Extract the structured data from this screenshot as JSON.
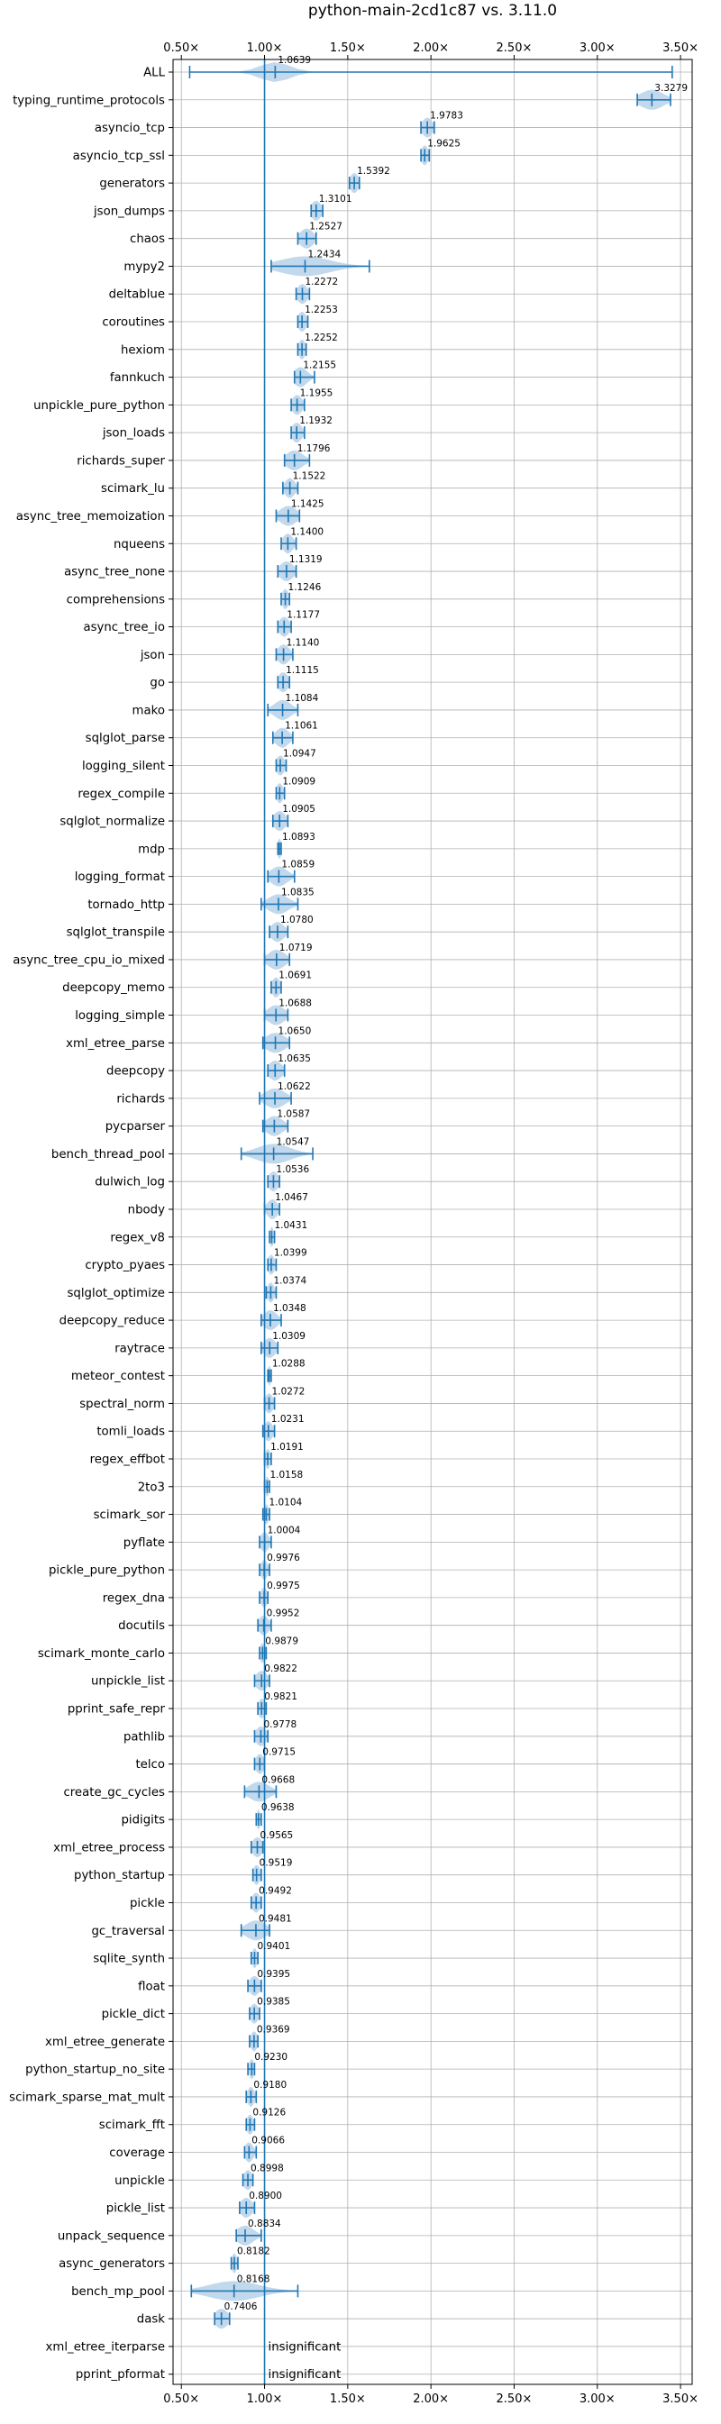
{
  "chart_data": {
    "type": "violin",
    "title": "python-main-2cd1c87 vs. 3.11.0",
    "xlabel": "",
    "ylabel": "",
    "xlim": [
      0.45,
      3.57
    ],
    "x_ticks": [
      0.5,
      1.0,
      1.5,
      2.0,
      2.5,
      3.0,
      3.5
    ],
    "x_tick_labels": [
      "0.50×",
      "1.00×",
      "1.50×",
      "2.00×",
      "2.50×",
      "3.00×",
      "3.50×"
    ],
    "reference_line": 1.0,
    "grid": true,
    "accent_color": "#1f77b4",
    "violin_color": "#aecbe6",
    "benchmarks": [
      {
        "name": "ALL",
        "label": "1.0639",
        "mean": 1.0639,
        "min": 0.55,
        "max": 3.45,
        "spread": 0.09
      },
      {
        "name": "typing_runtime_protocols",
        "label": "3.3279",
        "mean": 3.3279,
        "min": 3.24,
        "max": 3.44,
        "spread": 0.07
      },
      {
        "name": "asyncio_tcp",
        "label": "1.9783",
        "mean": 1.9783,
        "min": 1.94,
        "max": 2.02,
        "spread": 0.03
      },
      {
        "name": "asyncio_tcp_ssl",
        "label": "1.9625",
        "mean": 1.9625,
        "min": 1.94,
        "max": 1.99,
        "spread": 0.02
      },
      {
        "name": "generators",
        "label": "1.5392",
        "mean": 1.5392,
        "min": 1.51,
        "max": 1.57,
        "spread": 0.025
      },
      {
        "name": "json_dumps",
        "label": "1.3101",
        "mean": 1.3101,
        "min": 1.28,
        "max": 1.35,
        "spread": 0.03
      },
      {
        "name": "chaos",
        "label": "1.2527",
        "mean": 1.2527,
        "min": 1.2,
        "max": 1.31,
        "spread": 0.04
      },
      {
        "name": "mypy2",
        "label": "1.2434",
        "mean": 1.2434,
        "min": 1.04,
        "max": 1.63,
        "spread": 0.15
      },
      {
        "name": "deltablue",
        "label": "1.2272",
        "mean": 1.2272,
        "min": 1.19,
        "max": 1.27,
        "spread": 0.03
      },
      {
        "name": "coroutines",
        "label": "1.2253",
        "mean": 1.2253,
        "min": 1.2,
        "max": 1.26,
        "spread": 0.025
      },
      {
        "name": "hexiom",
        "label": "1.2252",
        "mean": 1.2252,
        "min": 1.2,
        "max": 1.25,
        "spread": 0.02
      },
      {
        "name": "fannkuch",
        "label": "1.2155",
        "mean": 1.2155,
        "min": 1.18,
        "max": 1.3,
        "spread": 0.04
      },
      {
        "name": "unpickle_pure_python",
        "label": "1.1955",
        "mean": 1.1955,
        "min": 1.16,
        "max": 1.24,
        "spread": 0.03
      },
      {
        "name": "json_loads",
        "label": "1.1932",
        "mean": 1.1932,
        "min": 1.16,
        "max": 1.24,
        "spread": 0.03
      },
      {
        "name": "richards_super",
        "label": "1.1796",
        "mean": 1.1796,
        "min": 1.12,
        "max": 1.27,
        "spread": 0.05
      },
      {
        "name": "scimark_lu",
        "label": "1.1522",
        "mean": 1.1522,
        "min": 1.11,
        "max": 1.2,
        "spread": 0.03
      },
      {
        "name": "async_tree_memoization",
        "label": "1.1425",
        "mean": 1.1425,
        "min": 1.07,
        "max": 1.21,
        "spread": 0.05
      },
      {
        "name": "nqueens",
        "label": "1.1400",
        "mean": 1.14,
        "min": 1.1,
        "max": 1.19,
        "spread": 0.03
      },
      {
        "name": "async_tree_none",
        "label": "1.1319",
        "mean": 1.1319,
        "min": 1.08,
        "max": 1.19,
        "spread": 0.04
      },
      {
        "name": "comprehensions",
        "label": "1.1246",
        "mean": 1.1246,
        "min": 1.1,
        "max": 1.15,
        "spread": 0.02
      },
      {
        "name": "async_tree_io",
        "label": "1.1177",
        "mean": 1.1177,
        "min": 1.08,
        "max": 1.16,
        "spread": 0.03
      },
      {
        "name": "json",
        "label": "1.1140",
        "mean": 1.114,
        "min": 1.07,
        "max": 1.17,
        "spread": 0.035
      },
      {
        "name": "go",
        "label": "1.1115",
        "mean": 1.1115,
        "min": 1.08,
        "max": 1.15,
        "spread": 0.03
      },
      {
        "name": "mako",
        "label": "1.1084",
        "mean": 1.1084,
        "min": 1.02,
        "max": 1.2,
        "spread": 0.05
      },
      {
        "name": "sqlglot_parse",
        "label": "1.1061",
        "mean": 1.1061,
        "min": 1.05,
        "max": 1.17,
        "spread": 0.04
      },
      {
        "name": "logging_silent",
        "label": "1.0947",
        "mean": 1.0947,
        "min": 1.07,
        "max": 1.13,
        "spread": 0.025
      },
      {
        "name": "regex_compile",
        "label": "1.0909",
        "mean": 1.0909,
        "min": 1.07,
        "max": 1.12,
        "spread": 0.02
      },
      {
        "name": "sqlglot_normalize",
        "label": "1.0905",
        "mean": 1.0905,
        "min": 1.05,
        "max": 1.14,
        "spread": 0.035
      },
      {
        "name": "mdp",
        "label": "1.0893",
        "mean": 1.0893,
        "min": 1.08,
        "max": 1.1,
        "spread": 0.012
      },
      {
        "name": "logging_format",
        "label": "1.0859",
        "mean": 1.0859,
        "min": 1.02,
        "max": 1.18,
        "spread": 0.05
      },
      {
        "name": "tornado_http",
        "label": "1.0835",
        "mean": 1.0835,
        "min": 0.98,
        "max": 1.2,
        "spread": 0.06
      },
      {
        "name": "sqlglot_transpile",
        "label": "1.0780",
        "mean": 1.078,
        "min": 1.03,
        "max": 1.14,
        "spread": 0.04
      },
      {
        "name": "async_tree_cpu_io_mixed",
        "label": "1.0719",
        "mean": 1.0719,
        "min": 1.0,
        "max": 1.15,
        "spread": 0.05
      },
      {
        "name": "deepcopy_memo",
        "label": "1.0691",
        "mean": 1.0691,
        "min": 1.04,
        "max": 1.1,
        "spread": 0.025
      },
      {
        "name": "logging_simple",
        "label": "1.0688",
        "mean": 1.0688,
        "min": 1.0,
        "max": 1.14,
        "spread": 0.05
      },
      {
        "name": "xml_etree_parse",
        "label": "1.0650",
        "mean": 1.065,
        "min": 0.99,
        "max": 1.15,
        "spread": 0.06
      },
      {
        "name": "deepcopy",
        "label": "1.0635",
        "mean": 1.0635,
        "min": 1.02,
        "max": 1.12,
        "spread": 0.04
      },
      {
        "name": "richards",
        "label": "1.0622",
        "mean": 1.0622,
        "min": 0.97,
        "max": 1.16,
        "spread": 0.06
      },
      {
        "name": "pycparser",
        "label": "1.0587",
        "mean": 1.0587,
        "min": 0.99,
        "max": 1.14,
        "spread": 0.05
      },
      {
        "name": "bench_thread_pool",
        "label": "1.0547",
        "mean": 1.0547,
        "min": 0.86,
        "max": 1.29,
        "spread": 0.1
      },
      {
        "name": "dulwich_log",
        "label": "1.0536",
        "mean": 1.0536,
        "min": 1.02,
        "max": 1.09,
        "spread": 0.03
      },
      {
        "name": "nbody",
        "label": "1.0467",
        "mean": 1.0467,
        "min": 1.0,
        "max": 1.09,
        "spread": 0.03
      },
      {
        "name": "regex_v8",
        "label": "1.0431",
        "mean": 1.0431,
        "min": 1.03,
        "max": 1.06,
        "spread": 0.012
      },
      {
        "name": "crypto_pyaes",
        "label": "1.0399",
        "mean": 1.0399,
        "min": 1.02,
        "max": 1.07,
        "spread": 0.02
      },
      {
        "name": "sqlglot_optimize",
        "label": "1.0374",
        "mean": 1.0374,
        "min": 1.01,
        "max": 1.07,
        "spread": 0.02
      },
      {
        "name": "deepcopy_reduce",
        "label": "1.0348",
        "mean": 1.0348,
        "min": 0.98,
        "max": 1.1,
        "spread": 0.04
      },
      {
        "name": "raytrace",
        "label": "1.0309",
        "mean": 1.0309,
        "min": 0.98,
        "max": 1.08,
        "spread": 0.035
      },
      {
        "name": "meteor_contest",
        "label": "1.0288",
        "mean": 1.0288,
        "min": 1.02,
        "max": 1.04,
        "spread": 0.01
      },
      {
        "name": "spectral_norm",
        "label": "1.0272",
        "mean": 1.0272,
        "min": 1.0,
        "max": 1.06,
        "spread": 0.025
      },
      {
        "name": "tomli_loads",
        "label": "1.0231",
        "mean": 1.0231,
        "min": 0.99,
        "max": 1.06,
        "spread": 0.025
      },
      {
        "name": "regex_effbot",
        "label": "1.0191",
        "mean": 1.0191,
        "min": 1.0,
        "max": 1.04,
        "spread": 0.015
      },
      {
        "name": "2to3",
        "label": "1.0158",
        "mean": 1.0158,
        "min": 1.0,
        "max": 1.03,
        "spread": 0.012
      },
      {
        "name": "scimark_sor",
        "label": "1.0104",
        "mean": 1.0104,
        "min": 0.99,
        "max": 1.03,
        "spread": 0.015
      },
      {
        "name": "pyflate",
        "label": "1.0004",
        "mean": 1.0004,
        "min": 0.97,
        "max": 1.04,
        "spread": 0.025
      },
      {
        "name": "pickle_pure_python",
        "label": "0.9976",
        "mean": 0.9976,
        "min": 0.97,
        "max": 1.03,
        "spread": 0.02
      },
      {
        "name": "regex_dna",
        "label": "0.9975",
        "mean": 0.9975,
        "min": 0.97,
        "max": 1.02,
        "spread": 0.02
      },
      {
        "name": "docutils",
        "label": "0.9952",
        "mean": 0.9952,
        "min": 0.96,
        "max": 1.04,
        "spread": 0.03
      },
      {
        "name": "scimark_monte_carlo",
        "label": "0.9879",
        "mean": 0.9879,
        "min": 0.97,
        "max": 1.01,
        "spread": 0.015
      },
      {
        "name": "unpickle_list",
        "label": "0.9822",
        "mean": 0.9822,
        "min": 0.94,
        "max": 1.03,
        "spread": 0.035
      },
      {
        "name": "pprint_safe_repr",
        "label": "0.9821",
        "mean": 0.9821,
        "min": 0.96,
        "max": 1.01,
        "spread": 0.02
      },
      {
        "name": "pathlib",
        "label": "0.9778",
        "mean": 0.9778,
        "min": 0.94,
        "max": 1.02,
        "spread": 0.03
      },
      {
        "name": "telco",
        "label": "0.9715",
        "mean": 0.9715,
        "min": 0.94,
        "max": 1.0,
        "spread": 0.025
      },
      {
        "name": "create_gc_cycles",
        "label": "0.9668",
        "mean": 0.9668,
        "min": 0.88,
        "max": 1.07,
        "spread": 0.06
      },
      {
        "name": "pidigits",
        "label": "0.9638",
        "mean": 0.9638,
        "min": 0.95,
        "max": 0.98,
        "spread": 0.01
      },
      {
        "name": "xml_etree_process",
        "label": "0.9565",
        "mean": 0.9565,
        "min": 0.92,
        "max": 0.99,
        "spread": 0.03
      },
      {
        "name": "python_startup",
        "label": "0.9519",
        "mean": 0.9519,
        "min": 0.93,
        "max": 0.98,
        "spread": 0.02
      },
      {
        "name": "pickle",
        "label": "0.9492",
        "mean": 0.9492,
        "min": 0.92,
        "max": 0.98,
        "spread": 0.025
      },
      {
        "name": "gc_traversal",
        "label": "0.9481",
        "mean": 0.9481,
        "min": 0.86,
        "max": 1.03,
        "spread": 0.06
      },
      {
        "name": "sqlite_synth",
        "label": "0.9401",
        "mean": 0.9401,
        "min": 0.92,
        "max": 0.96,
        "spread": 0.015
      },
      {
        "name": "float",
        "label": "0.9395",
        "mean": 0.9395,
        "min": 0.9,
        "max": 0.98,
        "spread": 0.03
      },
      {
        "name": "pickle_dict",
        "label": "0.9385",
        "mean": 0.9385,
        "min": 0.91,
        "max": 0.97,
        "spread": 0.025
      },
      {
        "name": "xml_etree_generate",
        "label": "0.9369",
        "mean": 0.9369,
        "min": 0.91,
        "max": 0.96,
        "spread": 0.02
      },
      {
        "name": "python_startup_no_site",
        "label": "0.9230",
        "mean": 0.923,
        "min": 0.9,
        "max": 0.94,
        "spread": 0.015
      },
      {
        "name": "scimark_sparse_mat_mult",
        "label": "0.9180",
        "mean": 0.918,
        "min": 0.89,
        "max": 0.95,
        "spread": 0.02
      },
      {
        "name": "scimark_fft",
        "label": "0.9126",
        "mean": 0.9126,
        "min": 0.89,
        "max": 0.94,
        "spread": 0.02
      },
      {
        "name": "coverage",
        "label": "0.9066",
        "mean": 0.9066,
        "min": 0.88,
        "max": 0.95,
        "spread": 0.025
      },
      {
        "name": "unpickle",
        "label": "0.8998",
        "mean": 0.8998,
        "min": 0.87,
        "max": 0.93,
        "spread": 0.025
      },
      {
        "name": "pickle_list",
        "label": "0.8900",
        "mean": 0.89,
        "min": 0.85,
        "max": 0.94,
        "spread": 0.035
      },
      {
        "name": "unpack_sequence",
        "label": "0.8834",
        "mean": 0.8834,
        "min": 0.83,
        "max": 0.98,
        "spread": 0.05
      },
      {
        "name": "async_generators",
        "label": "0.8182",
        "mean": 0.8182,
        "min": 0.8,
        "max": 0.84,
        "spread": 0.015
      },
      {
        "name": "bench_mp_pool",
        "label": "0.8168",
        "mean": 0.8168,
        "min": 0.56,
        "max": 1.2,
        "spread": 0.15
      },
      {
        "name": "dask",
        "label": "0.7406",
        "mean": 0.7406,
        "min": 0.7,
        "max": 0.79,
        "spread": 0.04
      },
      {
        "name": "xml_etree_iterparse",
        "label": "insignificant",
        "mean": null,
        "min": null,
        "max": null,
        "spread": null
      },
      {
        "name": "pprint_pformat",
        "label": "insignificant",
        "mean": null,
        "min": null,
        "max": null,
        "spread": null
      }
    ]
  }
}
